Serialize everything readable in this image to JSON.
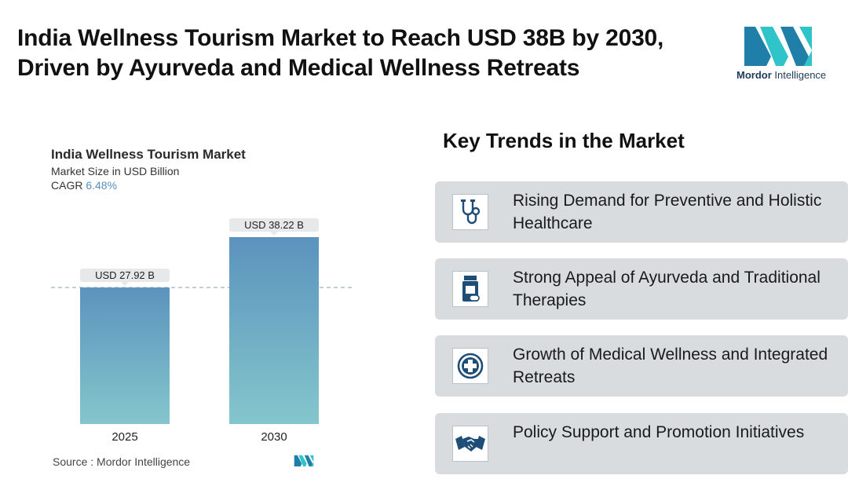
{
  "headline": "India Wellness Tourism Market to Reach USD 38B by 2030, Driven by Ayurveda and Medical Wellness Retreats",
  "brand": {
    "name_bold": "Mordor",
    "name_rest": " Intelligence",
    "icon": "mordor-logo-icon",
    "color_primary": "#1f7fa8",
    "color_accent": "#2ec4c9"
  },
  "chart_header": {
    "title": "India Wellness Tourism Market",
    "subtitle": "Market Size in USD Billion",
    "cagr_label": "CAGR",
    "cagr_value": "6.48%"
  },
  "chart_data": {
    "type": "bar",
    "title": "India Wellness Tourism Market",
    "ylabel": "Market Size in USD Billion",
    "categories": [
      "2025",
      "2030"
    ],
    "values": [
      27.92,
      38.22
    ],
    "data_labels": [
      "USD 27.92 B",
      "USD 38.22 B"
    ],
    "ylim": [
      0,
      38.22
    ],
    "grid": false,
    "reference_line": 27.92,
    "colors": {
      "bar_top": "#5b93bd",
      "bar_bottom": "#84c6cc",
      "label_bg": "#e6e8ea"
    }
  },
  "source": "Source :  Mordor Intelligence",
  "trends": {
    "title": "Key Trends in the Market",
    "items": [
      {
        "label": "Rising Demand for Preventive and Holistic Healthcare",
        "icon": "stethoscope-icon"
      },
      {
        "label": "Strong Appeal of Ayurveda and Traditional Therapies",
        "icon": "medicine-bottle-icon"
      },
      {
        "label": "Growth of Medical Wellness and Integrated Retreats",
        "icon": "medical-cross-icon"
      },
      {
        "label": "Policy Support and Promotion Initiatives",
        "icon": "handshake-icon"
      }
    ]
  }
}
